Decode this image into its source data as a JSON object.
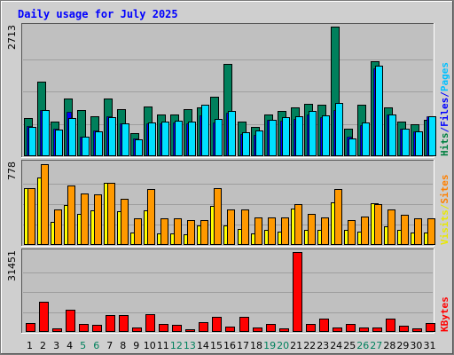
{
  "chart_data": {
    "type": "bar",
    "title": "Daily usage for July 2025",
    "x": [
      "1",
      "2",
      "3",
      "4",
      "5",
      "6",
      "7",
      "8",
      "9",
      "10",
      "11",
      "12",
      "13",
      "14",
      "15",
      "16",
      "17",
      "18",
      "19",
      "20",
      "21",
      "22",
      "23",
      "24",
      "25",
      "26",
      "27",
      "28",
      "29",
      "30",
      "31"
    ],
    "weekend_days": [
      "5",
      "6",
      "12",
      "13",
      "19",
      "20",
      "26",
      "27"
    ],
    "panels": [
      {
        "id": "hits",
        "ylim": [
          0,
          2713
        ],
        "ymax_label": "2713",
        "right_labels": [
          {
            "text": "Hits",
            "color": "#008040"
          },
          {
            "text": "/",
            "color": "#0000ff"
          },
          {
            "text": "Files",
            "color": "#0000ff"
          },
          {
            "text": "/",
            "color": "#0000ff"
          },
          {
            "text": "Pages",
            "color": "#00c0ff"
          }
        ],
        "series": [
          {
            "name": "Hits",
            "color": "#00805c",
            "values": [
              790,
              1560,
              720,
              1200,
              960,
              830,
              1200,
              980,
              480,
              1040,
              870,
              880,
              980,
              1030,
              1250,
              1940,
              720,
              620,
              880,
              940,
              1020,
              1100,
              1070,
              2713,
              580,
              1080,
              1990,
              1030,
              730,
              660,
              760
            ]
          },
          {
            "name": "Files",
            "color": "#0000ff",
            "values": [
              640,
              960,
              580,
              930,
              400,
              540,
              830,
              680,
              380,
              680,
              680,
              700,
              690,
              850,
              700,
              910,
              470,
              440,
              760,
              750,
              780,
              880,
              820,
              970,
              400,
              650,
              1840,
              880,
              570,
              520,
              830
            ]
          },
          {
            "name": "Pages",
            "color": "#00e0ff",
            "values": [
              620,
              960,
              560,
              800,
              410,
              520,
              820,
              680,
              360,
              700,
              720,
              740,
              730,
              1070,
              780,
              940,
              500,
              530,
              760,
              820,
              840,
              950,
              860,
              1120,
              380,
              700,
              1890,
              880,
              570,
              520,
              830
            ]
          }
        ]
      },
      {
        "id": "visits",
        "ylim": [
          0,
          778
        ],
        "ymax_label": "778",
        "right_labels": [
          {
            "text": "Visits",
            "color": "#e8e800"
          },
          {
            "text": "/",
            "color": "#e8e800"
          },
          {
            "text": "Sites",
            "color": "#ff8000"
          }
        ],
        "series": [
          {
            "name": "Visits",
            "color": "#ffff00",
            "values": [
              540,
              640,
              220,
              380,
              300,
              330,
              590,
              320,
              120,
              330,
              110,
              110,
              100,
              190,
              370,
              190,
              150,
              110,
              140,
              130,
              350,
              140,
              140,
              410,
              140,
              130,
              400,
              180,
              140,
              120,
              120
            ]
          },
          {
            "name": "Sites",
            "color": "#ff9900",
            "values": [
              540,
              770,
              340,
              570,
              490,
              480,
              590,
              440,
              250,
              530,
              250,
              250,
              240,
              240,
              540,
              340,
              340,
              260,
              260,
              260,
              390,
              300,
              260,
              530,
              240,
              270,
              390,
              340,
              290,
              250,
              250
            ]
          }
        ]
      },
      {
        "id": "kbytes",
        "ylim": [
          0,
          31451
        ],
        "ymax_label": "31451",
        "right_labels": [
          {
            "text": "KBytes",
            "color": "#ff0000"
          }
        ],
        "series": [
          {
            "name": "KBytes",
            "color": "#ff0000",
            "values": [
              3600,
              12000,
              1300,
              8800,
              3300,
              2700,
              6700,
              6700,
              1700,
              7100,
              3200,
              2800,
              1200,
              3800,
              5800,
              2200,
              5900,
              1600,
              3300,
              1300,
              31451,
              3300,
              5300,
              1900,
              3200,
              1700,
              1700,
              5200,
              2500,
              1300,
              3600
            ]
          }
        ]
      }
    ],
    "colors": {
      "background": "#cfcfcf",
      "plot": "#c0c0c0",
      "title": "#0000ff",
      "axis_text": "#000000",
      "weekend_text": "#00805c",
      "gridline": "#9e9e9e"
    }
  }
}
